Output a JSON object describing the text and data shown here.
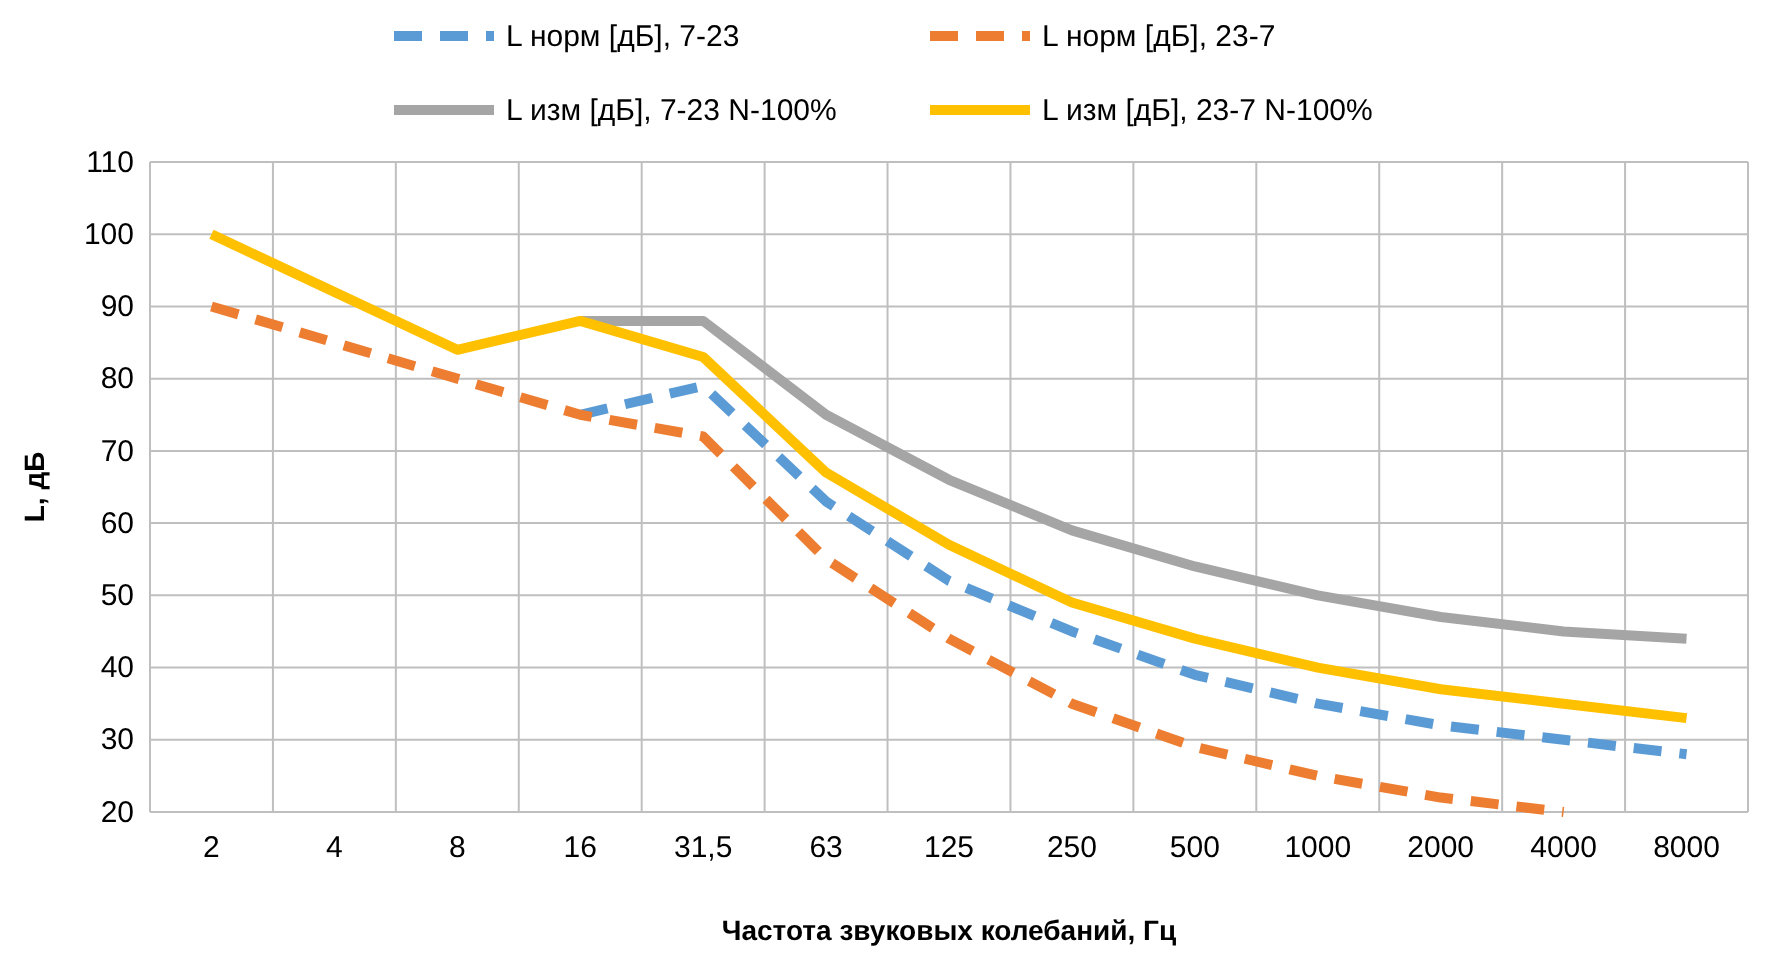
{
  "chart_data": {
    "type": "line",
    "xlabel": "Частота звуковых колебаний,  Гц",
    "ylabel": "L, дБ",
    "categories": [
      "2",
      "4",
      "8",
      "16",
      "31,5",
      "63",
      "125",
      "250",
      "500",
      "1000",
      "2000",
      "4000",
      "8000"
    ],
    "ylim": [
      20,
      110
    ],
    "yticks": [
      20,
      30,
      40,
      50,
      60,
      70,
      80,
      90,
      100,
      110
    ],
    "grid": true,
    "legend": "top",
    "marker": "none",
    "series": [
      {
        "name": "L норм [дБ], 7-23",
        "color": "#5b9bd5",
        "line_style": "dashed",
        "values": [
          null,
          null,
          null,
          75,
          79,
          63,
          52,
          45,
          39,
          35,
          32,
          30,
          28
        ]
      },
      {
        "name": "L норм [дБ], 23-7",
        "color": "#ed7d31",
        "line_style": "dashed",
        "values": [
          90,
          85,
          80,
          75,
          72,
          55,
          44,
          35,
          29,
          25,
          22,
          20,
          null
        ]
      },
      {
        "name": "L изм [дБ], 7-23 N-100%",
        "color": "#a5a5a5",
        "line_style": "solid",
        "values": [
          null,
          null,
          null,
          88,
          88,
          75,
          66,
          59,
          54,
          50,
          47,
          45,
          44
        ]
      },
      {
        "name": "L изм [дБ], 23-7 N-100%",
        "color": "#ffc000",
        "line_style": "solid",
        "values": [
          100,
          92,
          84,
          88,
          83,
          67,
          57,
          49,
          44,
          40,
          37,
          35,
          33
        ]
      }
    ]
  }
}
